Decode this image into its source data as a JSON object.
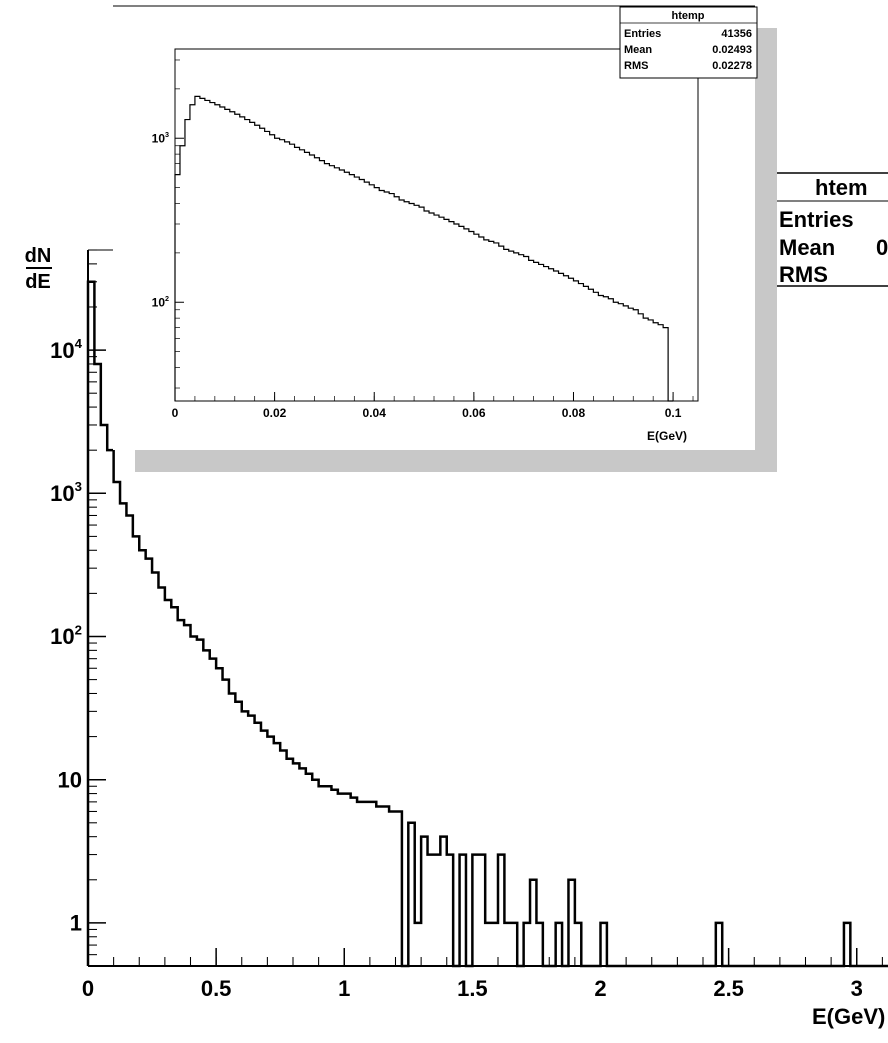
{
  "chart_data": [
    {
      "type": "step",
      "title": "",
      "xlabel": "E(GeV)",
      "ylabel_num": "dN",
      "ylabel_den": "dE",
      "xlim": [
        0,
        3.2
      ],
      "ylim": [
        0.5,
        50000
      ],
      "yscale": "log",
      "x_ticks": [
        {
          "v": 0,
          "label": "0"
        },
        {
          "v": 0.5,
          "label": "0.5"
        },
        {
          "v": 1,
          "label": "1"
        },
        {
          "v": 1.5,
          "label": "1.5"
        },
        {
          "v": 2,
          "label": "2"
        },
        {
          "v": 2.5,
          "label": "2.5"
        },
        {
          "v": 3,
          "label": "3"
        }
      ],
      "y_ticks": [
        {
          "v": 1,
          "base": "1",
          "exp": ""
        },
        {
          "v": 10,
          "base": "10",
          "exp": ""
        },
        {
          "v": 100,
          "base": "10",
          "exp": "2"
        },
        {
          "v": 1000,
          "base": "10",
          "exp": "3"
        },
        {
          "v": 10000,
          "base": "10",
          "exp": "4"
        }
      ],
      "stats_box": {
        "title": "htem",
        "rows": [
          {
            "label": "Entries",
            "value": ""
          },
          {
            "label": "Mean",
            "value": "0"
          },
          {
            "label": "RMS",
            "value": ""
          }
        ]
      },
      "bin_width": 0.025,
      "x_start": 0,
      "values": [
        30000,
        8000,
        3000,
        2000,
        1200,
        850,
        700,
        500,
        400,
        350,
        280,
        220,
        180,
        160,
        130,
        120,
        100,
        95,
        80,
        70,
        60,
        50,
        40,
        35,
        30,
        28,
        25,
        22,
        20,
        18,
        16,
        14,
        13,
        12,
        11,
        10,
        9,
        9,
        8.5,
        8,
        8,
        7.5,
        7,
        7,
        7,
        6.5,
        6.5,
        6,
        6,
        0.5,
        5,
        1,
        4,
        3,
        3,
        4,
        3,
        0.5,
        3,
        0.5,
        3,
        3,
        1,
        1,
        3,
        1,
        1,
        0.5,
        1,
        2,
        1,
        0.5,
        0.5,
        1,
        0.5,
        2,
        1,
        0.5,
        0.5,
        0.5,
        1,
        0.5,
        0.5,
        0.5,
        0.5,
        0.5,
        0.5,
        0.5,
        0.5,
        0.5,
        0.5,
        0.5,
        0.5,
        0.5,
        0.5,
        0.5,
        0.5,
        0.5,
        1,
        0.5,
        0.5,
        0.5,
        0.5,
        0.5,
        0.5,
        0.5,
        0.5,
        0.5,
        0.5,
        0.5,
        0.5,
        0.5,
        0.5,
        0.5,
        0.5,
        0.5,
        0.5,
        0.5,
        1,
        0.5,
        0.5,
        0.5,
        0.5,
        0.5,
        0.5,
        0.5,
        0.5
      ]
    },
    {
      "type": "step",
      "title": "",
      "xlabel": "E(GeV)",
      "xlim": [
        0,
        0.105
      ],
      "ylim": [
        25,
        3500
      ],
      "yscale": "log",
      "x_ticks": [
        {
          "v": 0,
          "label": "0"
        },
        {
          "v": 0.02,
          "label": "0.02"
        },
        {
          "v": 0.04,
          "label": "0.04"
        },
        {
          "v": 0.06,
          "label": "0.06"
        },
        {
          "v": 0.08,
          "label": "0.08"
        },
        {
          "v": 0.1,
          "label": "0.1"
        }
      ],
      "y_ticks": [
        {
          "v": 100,
          "base": "10",
          "exp": "2"
        },
        {
          "v": 1000,
          "base": "10",
          "exp": "3"
        }
      ],
      "stats_box": {
        "title": "htemp",
        "rows": [
          {
            "label": "Entries",
            "value": "41356"
          },
          {
            "label": "Mean",
            "value": "0.02493"
          },
          {
            "label": "RMS",
            "value": "0.02278"
          }
        ]
      },
      "bin_width": 0.001,
      "x_start": 0,
      "values": [
        600,
        900,
        1300,
        1600,
        1800,
        1750,
        1700,
        1650,
        1600,
        1550,
        1500,
        1450,
        1400,
        1350,
        1300,
        1250,
        1200,
        1150,
        1100,
        1050,
        1000,
        980,
        950,
        920,
        880,
        850,
        820,
        790,
        760,
        730,
        700,
        680,
        660,
        640,
        620,
        600,
        580,
        560,
        540,
        520,
        500,
        480,
        470,
        460,
        440,
        420,
        410,
        400,
        390,
        380,
        360,
        350,
        340,
        330,
        320,
        310,
        300,
        290,
        280,
        270,
        260,
        250,
        240,
        235,
        230,
        220,
        210,
        205,
        200,
        195,
        190,
        180,
        175,
        170,
        165,
        160,
        155,
        150,
        145,
        140,
        135,
        130,
        125,
        120,
        115,
        110,
        108,
        105,
        100,
        98,
        95,
        92,
        90,
        85,
        80,
        78,
        75,
        73,
        70,
        0.5
      ]
    }
  ]
}
